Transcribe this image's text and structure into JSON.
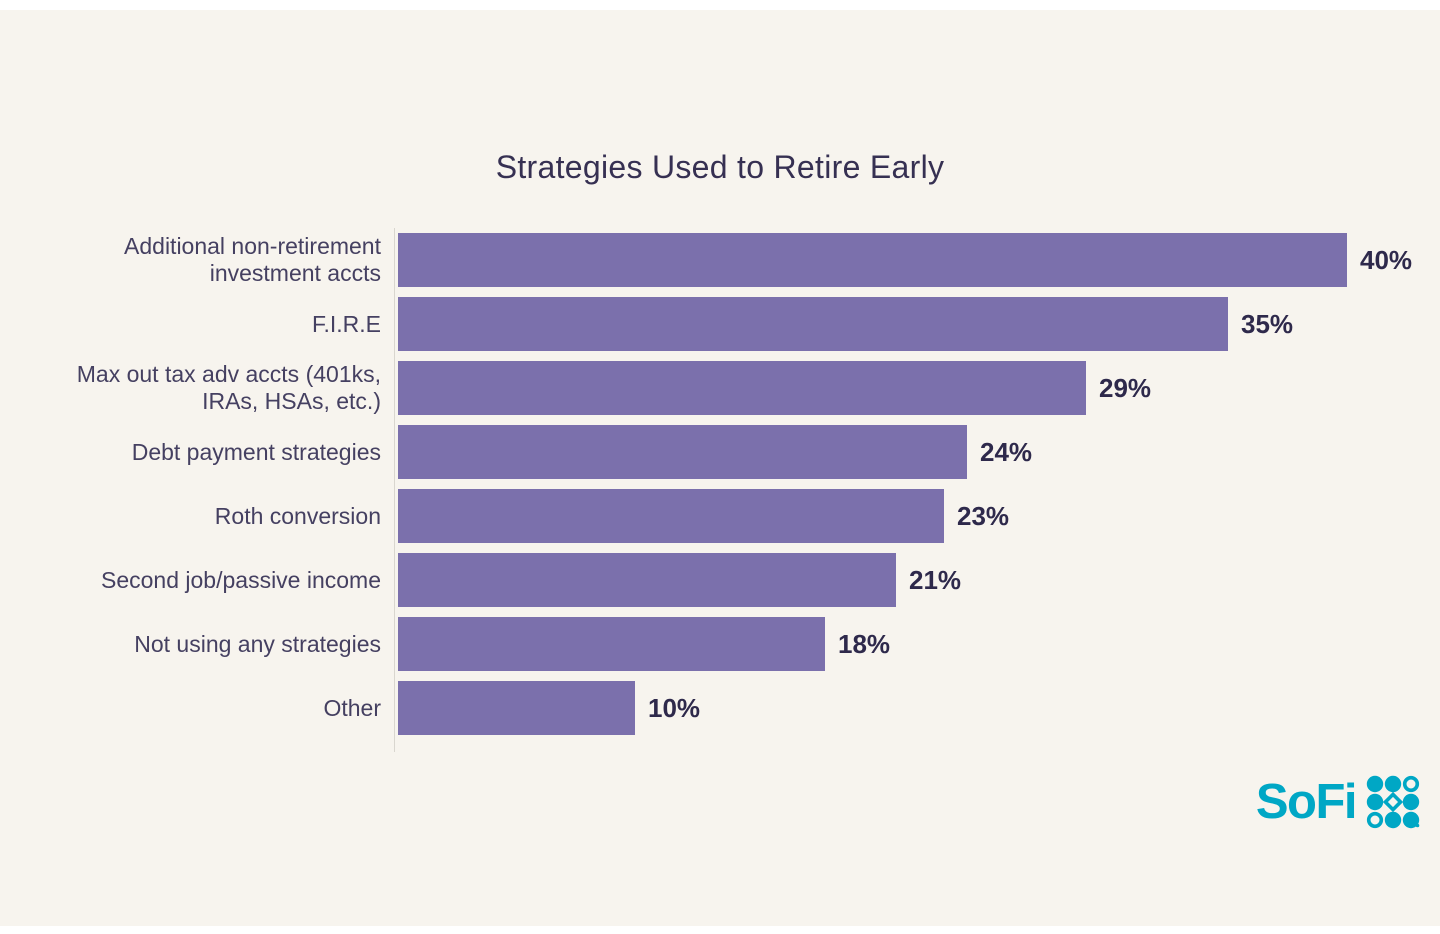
{
  "chart_data": {
    "type": "bar",
    "orientation": "horizontal",
    "title": "Strategies Used to Retire Early",
    "categories": [
      "Additional non-retirement investment accts",
      "F.I.R.E",
      "Max out tax adv accts (401ks, IRAs, HSAs, etc.)",
      "Debt payment strategies",
      "Roth conversion",
      "Second job/passive income",
      "Not using any strategies",
      "Other"
    ],
    "values": [
      40,
      35,
      29,
      24,
      23,
      21,
      18,
      10
    ],
    "value_label_format": "percent",
    "xlabel": "",
    "ylabel": "",
    "xlim": [
      0,
      40
    ],
    "grid": false,
    "legend": "none",
    "data_labels": [
      "40%",
      "35%",
      "29%",
      "24%",
      "23%",
      "21%",
      "18%",
      "10%"
    ]
  },
  "branding": {
    "logo_text": "SoFi",
    "logo_mark": "sofi-dot-grid"
  },
  "colors": {
    "bar": "#7B70AC",
    "title": "#363052",
    "label": "#454061",
    "value": "#2E294B",
    "background": "#F7F4EE",
    "brand": "#00A7C5",
    "axis": "#D9D6CF"
  }
}
